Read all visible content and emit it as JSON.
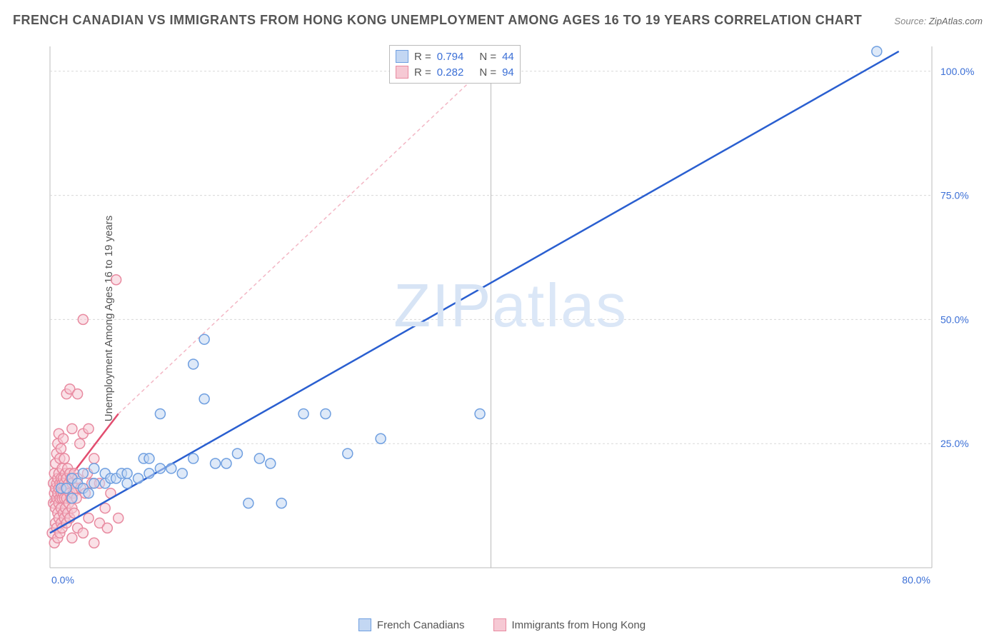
{
  "title": "FRENCH CANADIAN VS IMMIGRANTS FROM HONG KONG UNEMPLOYMENT AMONG AGES 16 TO 19 YEARS CORRELATION CHART",
  "source_label": "Source:",
  "source_value": "ZipAtlas.com",
  "ylabel": "Unemployment Among Ages 16 to 19 years",
  "watermark_a": "ZIP",
  "watermark_b": "atlas",
  "chart": {
    "type": "scatter",
    "xlim": [
      0,
      80
    ],
    "ylim": [
      0,
      105
    ],
    "x_ticks": [
      0,
      80
    ],
    "x_tick_labels": [
      "0.0%",
      "80.0%"
    ],
    "y_ticks": [
      25,
      50,
      75,
      100
    ],
    "y_tick_labels": [
      "25.0%",
      "50.0%",
      "75.0%",
      "100.0%"
    ],
    "grid_color": "#d8d8d8",
    "axis_color": "#bbbbbb",
    "background": "#ffffff",
    "label_color": "#3b6fd6",
    "marker_radius": 7,
    "marker_stroke_width": 1.5,
    "series": [
      {
        "name": "French Canadians",
        "fill": "#c3d7f3",
        "stroke": "#6f9fe0",
        "fill_opacity": 0.55,
        "r_value": "0.794",
        "n_value": "44",
        "trend": {
          "x1": 0,
          "y1": 7,
          "x2": 77,
          "y2": 104,
          "color": "#2a5fd0",
          "width": 2.5,
          "dash": ""
        },
        "points": [
          [
            1,
            16
          ],
          [
            1.5,
            16
          ],
          [
            2,
            14
          ],
          [
            2,
            18
          ],
          [
            2.5,
            17
          ],
          [
            3,
            16
          ],
          [
            3,
            19
          ],
          [
            3.5,
            15
          ],
          [
            4,
            20
          ],
          [
            4,
            17
          ],
          [
            5,
            17
          ],
          [
            5,
            19
          ],
          [
            5.5,
            18
          ],
          [
            6,
            18
          ],
          [
            6.5,
            19
          ],
          [
            7,
            19
          ],
          [
            7,
            17
          ],
          [
            8,
            18
          ],
          [
            8.5,
            22
          ],
          [
            9,
            19
          ],
          [
            9,
            22
          ],
          [
            10,
            20
          ],
          [
            10,
            31
          ],
          [
            11,
            20
          ],
          [
            12,
            19
          ],
          [
            13,
            22
          ],
          [
            13,
            41
          ],
          [
            14,
            34
          ],
          [
            14,
            46
          ],
          [
            15,
            21
          ],
          [
            16,
            21
          ],
          [
            17,
            23
          ],
          [
            18,
            13
          ],
          [
            19,
            22
          ],
          [
            20,
            21
          ],
          [
            21,
            13
          ],
          [
            23,
            31
          ],
          [
            25,
            31
          ],
          [
            27,
            23
          ],
          [
            30,
            26
          ],
          [
            33,
            104
          ],
          [
            36,
            104
          ],
          [
            39,
            31
          ],
          [
            75,
            104
          ]
        ]
      },
      {
        "name": "Immigrants from Hong Kong",
        "fill": "#f6c9d4",
        "stroke": "#e88aa0",
        "fill_opacity": 0.55,
        "r_value": "0.282",
        "n_value": "94",
        "trend_solid": {
          "x1": 0,
          "y1": 13,
          "x2": 6.2,
          "y2": 31,
          "color": "#e24d6f",
          "width": 2.5
        },
        "trend": {
          "x1": 6.2,
          "y1": 31,
          "x2": 41,
          "y2": 104,
          "color": "#f3b7c5",
          "width": 1.5,
          "dash": "5,4"
        },
        "points": [
          [
            0.2,
            7
          ],
          [
            0.3,
            13
          ],
          [
            0.3,
            17
          ],
          [
            0.4,
            5
          ],
          [
            0.4,
            15
          ],
          [
            0.4,
            19
          ],
          [
            0.5,
            9
          ],
          [
            0.5,
            12
          ],
          [
            0.5,
            16
          ],
          [
            0.5,
            21
          ],
          [
            0.6,
            8
          ],
          [
            0.6,
            14
          ],
          [
            0.6,
            17
          ],
          [
            0.6,
            23
          ],
          [
            0.7,
            6
          ],
          [
            0.7,
            11
          ],
          [
            0.7,
            15
          ],
          [
            0.7,
            18
          ],
          [
            0.7,
            25
          ],
          [
            0.8,
            10
          ],
          [
            0.8,
            13
          ],
          [
            0.8,
            16
          ],
          [
            0.8,
            19
          ],
          [
            0.8,
            27
          ],
          [
            0.9,
            7
          ],
          [
            0.9,
            14
          ],
          [
            0.9,
            17
          ],
          [
            0.9,
            22
          ],
          [
            1.0,
            9
          ],
          [
            1.0,
            12
          ],
          [
            1.0,
            15
          ],
          [
            1.0,
            18
          ],
          [
            1.0,
            24
          ],
          [
            1.1,
            8
          ],
          [
            1.1,
            14
          ],
          [
            1.1,
            17
          ],
          [
            1.1,
            20
          ],
          [
            1.2,
            11
          ],
          [
            1.2,
            15
          ],
          [
            1.2,
            18
          ],
          [
            1.2,
            26
          ],
          [
            1.3,
            10
          ],
          [
            1.3,
            14
          ],
          [
            1.3,
            17
          ],
          [
            1.3,
            22
          ],
          [
            1.4,
            12
          ],
          [
            1.4,
            16
          ],
          [
            1.4,
            19
          ],
          [
            1.5,
            9
          ],
          [
            1.5,
            14
          ],
          [
            1.5,
            18
          ],
          [
            1.5,
            35
          ],
          [
            1.6,
            11
          ],
          [
            1.6,
            16
          ],
          [
            1.6,
            20
          ],
          [
            1.7,
            13
          ],
          [
            1.7,
            17
          ],
          [
            1.8,
            10
          ],
          [
            1.8,
            15
          ],
          [
            1.8,
            19
          ],
          [
            1.8,
            36
          ],
          [
            1.9,
            14
          ],
          [
            1.9,
            18
          ],
          [
            2.0,
            6
          ],
          [
            2.0,
            12
          ],
          [
            2.0,
            17
          ],
          [
            2.0,
            28
          ],
          [
            2.1,
            15
          ],
          [
            2.2,
            11
          ],
          [
            2.2,
            19
          ],
          [
            2.3,
            16
          ],
          [
            2.4,
            14
          ],
          [
            2.5,
            8
          ],
          [
            2.5,
            18
          ],
          [
            2.5,
            35
          ],
          [
            2.7,
            25
          ],
          [
            2.8,
            16
          ],
          [
            3.0,
            7
          ],
          [
            3.0,
            27
          ],
          [
            3.0,
            50
          ],
          [
            3.2,
            15
          ],
          [
            3.4,
            19
          ],
          [
            3.5,
            10
          ],
          [
            3.5,
            28
          ],
          [
            3.8,
            17
          ],
          [
            4.0,
            5
          ],
          [
            4.0,
            22
          ],
          [
            4.5,
            9
          ],
          [
            4.5,
            17
          ],
          [
            5.0,
            12
          ],
          [
            5.2,
            8
          ],
          [
            5.5,
            15
          ],
          [
            6.0,
            58
          ],
          [
            6.2,
            10
          ]
        ]
      }
    ]
  },
  "legend_bottom": [
    {
      "label": "French Canadians",
      "fill": "#c3d7f3",
      "stroke": "#6f9fe0"
    },
    {
      "label": "Immigrants from Hong Kong",
      "fill": "#f6c9d4",
      "stroke": "#e88aa0"
    }
  ]
}
